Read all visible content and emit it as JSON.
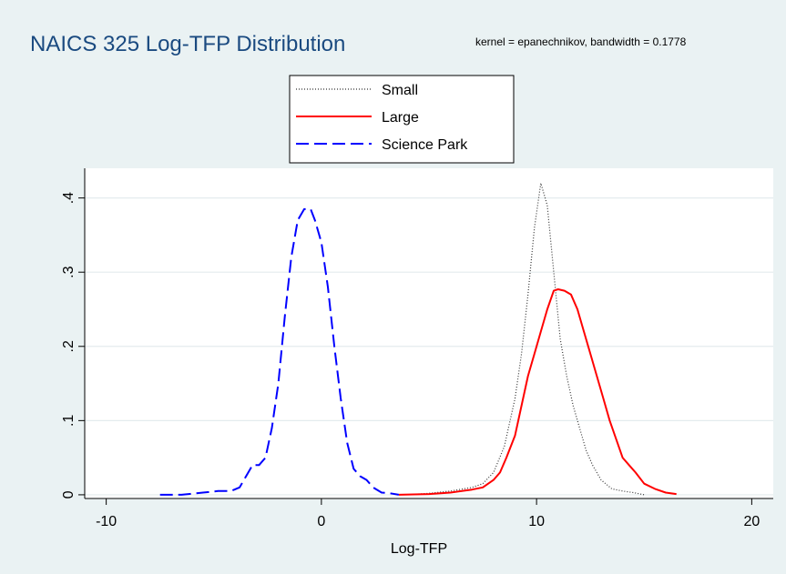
{
  "chart_data": {
    "type": "line",
    "title": "NAICS 325 Log-TFP Distribution",
    "note": "kernel = epanechnikov, bandwidth = 0.1778",
    "xlabel": "Log-TFP",
    "ylabel": "",
    "xlim": [
      -11,
      21
    ],
    "ylim": [
      -0.005,
      0.44
    ],
    "xticks": [
      -10,
      0,
      10,
      20
    ],
    "xtick_labels": [
      "-10",
      "0",
      "10",
      "20"
    ],
    "yticks": [
      0,
      0.1,
      0.2,
      0.3,
      0.4
    ],
    "ytick_labels": [
      "0",
      ".1",
      ".2",
      ".3",
      ".4"
    ],
    "grid": true,
    "legend_position": "top-center",
    "series": [
      {
        "name": "Small",
        "color": "#333333",
        "dash": "dotted",
        "x": [
          4.0,
          5.0,
          6.0,
          7.0,
          7.5,
          8.0,
          8.5,
          9.0,
          9.3,
          9.6,
          9.9,
          10.2,
          10.5,
          10.8,
          11.1,
          11.4,
          11.7,
          12.0,
          12.3,
          12.6,
          13.0,
          13.5,
          14.0,
          14.5,
          15.0
        ],
        "y": [
          0.0,
          0.002,
          0.005,
          0.01,
          0.015,
          0.03,
          0.065,
          0.13,
          0.19,
          0.27,
          0.36,
          0.42,
          0.39,
          0.3,
          0.21,
          0.16,
          0.12,
          0.09,
          0.06,
          0.04,
          0.02,
          0.008,
          0.005,
          0.003,
          0.0
        ]
      },
      {
        "name": "Large",
        "color": "#ff0000",
        "dash": "solid",
        "x": [
          3.6,
          5.0,
          6.0,
          7.0,
          7.5,
          8.0,
          8.3,
          8.6,
          9.0,
          9.3,
          9.6,
          9.9,
          10.2,
          10.5,
          10.8,
          11.0,
          11.3,
          11.6,
          11.9,
          12.2,
          12.5,
          12.8,
          13.1,
          13.4,
          13.7,
          14.0,
          14.3,
          14.6,
          15.0,
          15.5,
          16.0,
          16.5
        ],
        "y": [
          0.0,
          0.001,
          0.003,
          0.007,
          0.01,
          0.02,
          0.03,
          0.05,
          0.08,
          0.12,
          0.16,
          0.19,
          0.22,
          0.25,
          0.275,
          0.277,
          0.275,
          0.27,
          0.25,
          0.22,
          0.19,
          0.16,
          0.13,
          0.1,
          0.075,
          0.05,
          0.04,
          0.03,
          0.015,
          0.008,
          0.003,
          0.001
        ]
      },
      {
        "name": "Science Park",
        "color": "#0000ff",
        "dash": "long-dash",
        "x": [
          -7.5,
          -6.5,
          -5.5,
          -4.8,
          -4.2,
          -3.8,
          -3.5,
          -3.2,
          -2.9,
          -2.6,
          -2.3,
          -2.0,
          -1.7,
          -1.4,
          -1.1,
          -0.8,
          -0.5,
          -0.3,
          0.0,
          0.3,
          0.6,
          0.9,
          1.2,
          1.5,
          1.8,
          2.1,
          2.4,
          2.8,
          3.2,
          3.6
        ],
        "y": [
          0.0,
          0.0,
          0.003,
          0.005,
          0.005,
          0.01,
          0.025,
          0.04,
          0.04,
          0.05,
          0.09,
          0.15,
          0.24,
          0.32,
          0.37,
          0.385,
          0.385,
          0.37,
          0.34,
          0.28,
          0.2,
          0.13,
          0.07,
          0.035,
          0.025,
          0.02,
          0.01,
          0.003,
          0.002,
          0.0
        ]
      }
    ]
  }
}
